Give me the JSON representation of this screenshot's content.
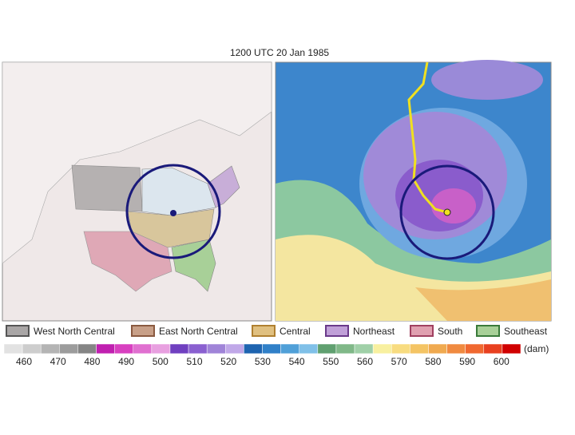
{
  "title": "1200 UTC 20 Jan 1985",
  "legend": [
    {
      "label": "West North Central",
      "color": "#a9a6a6",
      "border": "#555555"
    },
    {
      "label": "East North Central",
      "color": "#c8a088",
      "border": "#8a5a40"
    },
    {
      "label": "Central",
      "color": "#e0c080",
      "border": "#b08030"
    },
    {
      "label": "Northeast",
      "color": "#c0a0d8",
      "border": "#6a3a8a"
    },
    {
      "label": "South",
      "color": "#e0a0b0",
      "border": "#a04060"
    },
    {
      "label": "Southeast",
      "color": "#a8d098",
      "border": "#3a7a3a"
    }
  ],
  "colorbar": {
    "ticks": [
      460,
      470,
      480,
      490,
      500,
      510,
      520,
      530,
      540,
      550,
      560,
      570,
      580,
      590,
      600
    ],
    "unit": "(dam)"
  }
}
